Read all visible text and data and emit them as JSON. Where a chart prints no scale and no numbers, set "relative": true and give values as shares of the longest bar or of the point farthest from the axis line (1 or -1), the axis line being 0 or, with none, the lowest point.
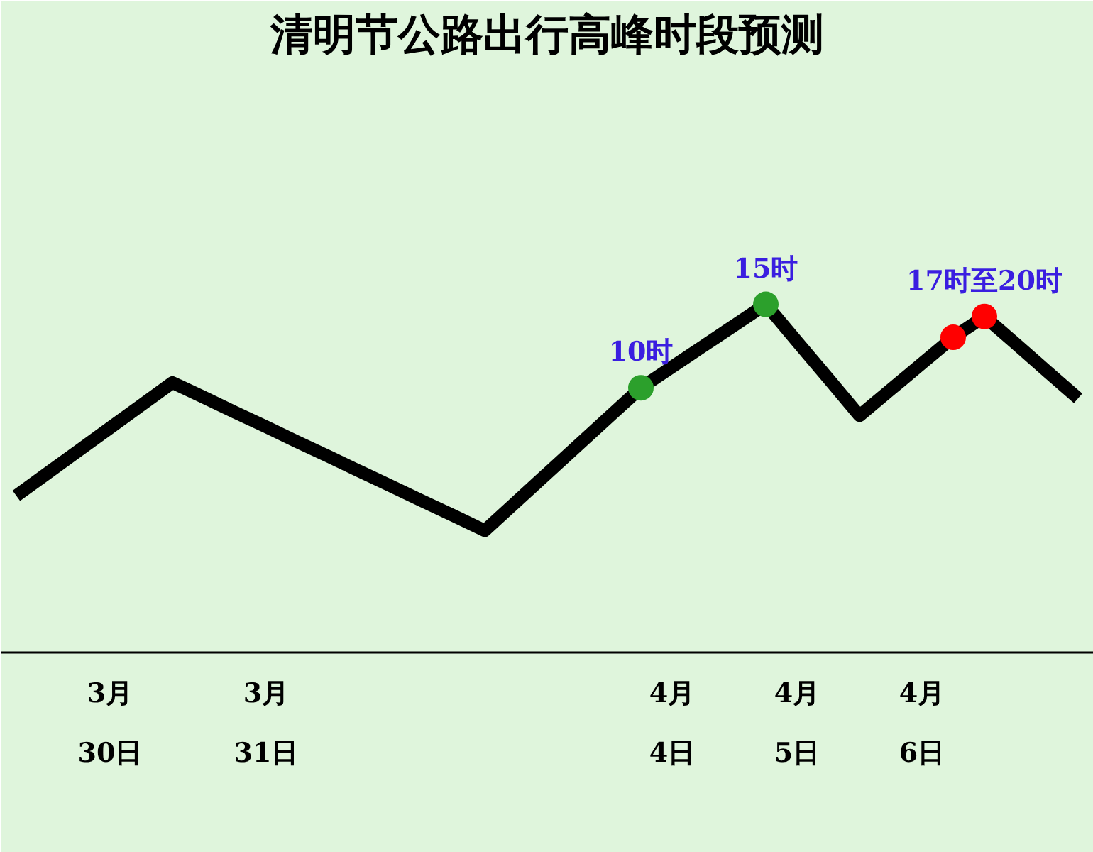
{
  "chart_data": {
    "type": "line",
    "title": "清明节公路出行高峰时段预测",
    "relative": true,
    "grid": false,
    "tick_labels": "x",
    "line_style": "solid",
    "marker": "none",
    "categories": [
      null,
      null,
      null,
      "3月\n30日",
      null,
      null,
      null,
      null,
      "3月\n31日",
      null,
      null,
      null,
      null,
      null,
      null,
      null,
      null,
      null,
      null,
      null,
      null,
      "4月\n4日",
      null,
      null,
      null,
      "4月\n5日",
      null,
      null,
      null,
      "4月\n6日",
      null,
      null,
      null,
      null,
      null
    ],
    "series": [
      {
        "color": "#000000",
        "values": [
          0.45,
          0.515,
          0.58,
          0.645,
          0.71,
          0.775,
          0.733,
          0.69,
          0.648,
          0.605,
          0.563,
          0.52,
          0.478,
          0.435,
          0.393,
          0.35,
          0.432,
          0.514,
          0.596,
          0.678,
          0.76,
          0.82,
          0.88,
          0.94,
          1.0,
          0.893,
          0.787,
          0.68,
          0.755,
          0.83,
          0.905,
          0.965,
          0.887,
          0.808,
          0.73
        ]
      },
      {
        "type": "scatter",
        "marker": "circle",
        "color": "#2ca02c",
        "values": [
          null,
          null,
          null,
          null,
          null,
          null,
          null,
          null,
          null,
          null,
          null,
          null,
          null,
          null,
          null,
          null,
          null,
          null,
          null,
          null,
          0.76,
          null,
          null,
          null,
          1.0,
          null,
          null,
          null,
          null,
          null,
          null,
          null,
          null,
          null,
          null
        ]
      },
      {
        "type": "scatter",
        "marker": "circle",
        "color": "#ff0000",
        "values": [
          null,
          null,
          null,
          null,
          null,
          null,
          null,
          null,
          null,
          null,
          null,
          null,
          null,
          null,
          null,
          null,
          null,
          null,
          null,
          null,
          null,
          null,
          null,
          null,
          null,
          null,
          null,
          null,
          null,
          null,
          0.905,
          0.965,
          null,
          null,
          null
        ]
      }
    ],
    "annotations": [
      {
        "text": "10时",
        "y": 0.76
      },
      {
        "text": "15时",
        "y": 1.0
      },
      {
        "text": "17时至20时",
        "y": 0.965
      }
    ]
  }
}
